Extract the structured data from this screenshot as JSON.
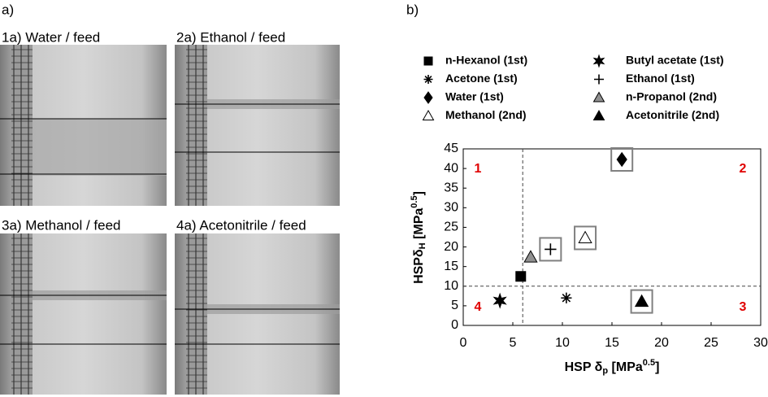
{
  "panel_labels": [
    "a)",
    "b)"
  ],
  "photos": [
    {
      "label": "1a) Water / feed"
    },
    {
      "label": "2a) Ethanol / feed"
    },
    {
      "label": "3a) Methanol / feed"
    },
    {
      "label": "4a) Acetonitrile / feed"
    }
  ],
  "chart_data": {
    "type": "scatter",
    "xlabel": {
      "main": "HSP δ",
      "sub": "p",
      "unit": " [MPa",
      "sup": "0.5",
      "end": "]"
    },
    "ylabel": {
      "main": "HSPδ",
      "sub": "H",
      "unit": " [MPa",
      "sup": "0.5",
      "end": "]"
    },
    "xlim": [
      0,
      30
    ],
    "xticks": [
      0,
      5,
      10,
      15,
      20,
      25,
      30
    ],
    "ylim": [
      0,
      45
    ],
    "yticks": [
      0,
      5,
      10,
      15,
      20,
      25,
      30,
      35,
      40,
      45
    ],
    "vlines": [
      6
    ],
    "hlines": [
      10
    ],
    "quadrant_labels": [
      "1",
      "2",
      "3",
      "4"
    ],
    "series": [
      {
        "name": "n-Hexanol (1st)",
        "marker": "square",
        "color": "#000000",
        "x": [
          5.8
        ],
        "values": [
          12.5
        ],
        "boxed": false
      },
      {
        "name": "Acetone (1st)",
        "marker": "asterisk",
        "color": "#000000",
        "x": [
          10.4
        ],
        "values": [
          7
        ],
        "boxed": false
      },
      {
        "name": "Water (1st)",
        "marker": "diamond",
        "color": "#000000",
        "x": [
          16
        ],
        "values": [
          42.3
        ],
        "boxed": true
      },
      {
        "name": "Methanol (2nd)",
        "marker": "triangle",
        "color": "#ffffff",
        "x": [
          12.3
        ],
        "values": [
          22.3
        ],
        "boxed": true
      },
      {
        "name": "Butyl acetate (1st)",
        "marker": "star",
        "color": "#000000",
        "x": [
          3.7
        ],
        "values": [
          6.3
        ],
        "boxed": false
      },
      {
        "name": "Ethanol (1st)",
        "marker": "plus",
        "color": "#000000",
        "x": [
          8.8
        ],
        "values": [
          19.4
        ],
        "boxed": true
      },
      {
        "name": "n-Propanol (2nd)",
        "marker": "triangle",
        "color": "#909090",
        "x": [
          6.8
        ],
        "values": [
          17.4
        ],
        "boxed": false
      },
      {
        "name": "Acetonitrile (2nd)",
        "marker": "triangle",
        "color": "#000000",
        "x": [
          18
        ],
        "values": [
          6.1
        ],
        "boxed": true
      }
    ]
  }
}
